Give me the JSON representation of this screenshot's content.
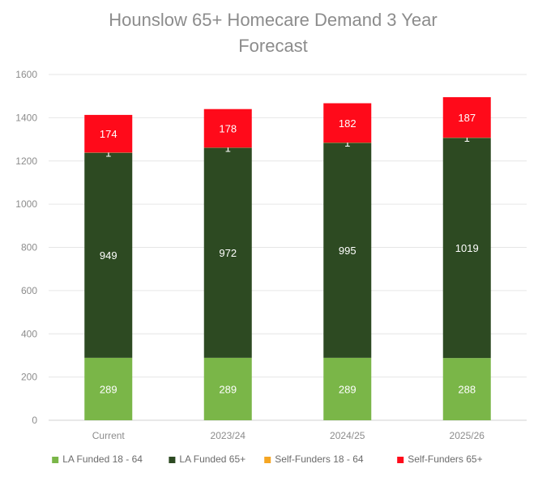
{
  "chart_data": {
    "type": "bar",
    "stacked": true,
    "title_lines": [
      "Hounslow 65+ Homecare Demand 3 Year",
      "Forecast"
    ],
    "categories": [
      "Current",
      "2023/24",
      "2024/25",
      "2025/26"
    ],
    "series": [
      {
        "name": "LA Funded 18 - 64",
        "color": "#7ab648",
        "values": [
          289,
          289,
          289,
          288
        ]
      },
      {
        "name": "LA Funded 65+",
        "color": "#2d4a22",
        "values": [
          949,
          972,
          995,
          1019
        ]
      },
      {
        "name": "Self-Funders 18 - 64",
        "color": "#f5a623",
        "values": [
          1,
          1,
          1,
          1
        ]
      },
      {
        "name": "Self-Funders 65+",
        "color": "#ff0a1a",
        "values": [
          174,
          178,
          182,
          187
        ]
      }
    ],
    "ylim": [
      0,
      1600
    ],
    "yticks": [
      0,
      200,
      400,
      600,
      800,
      1000,
      1200,
      1400,
      1600
    ],
    "grid": true,
    "legend_position": "bottom"
  }
}
